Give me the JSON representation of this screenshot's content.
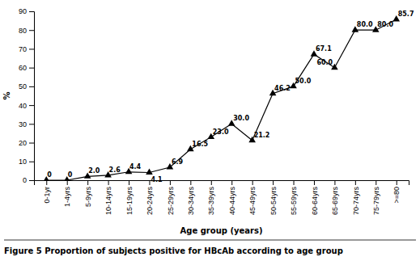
{
  "chart_data": {
    "type": "line",
    "title": "Figure 5 Proportion of subjects positive for HBcAb according to age group",
    "xlabel": "Age group (years)",
    "ylabel": "%",
    "categories": [
      "0-1yr",
      "1-4yrs",
      "5-9yrs",
      "10-14yrs",
      "15-19yrs",
      "20-24yrs",
      "25-29yrs",
      "30-34yrs",
      "35-39yrs",
      "40-44yrs",
      "45-49yrs",
      "50-54yrs",
      "55-59yrs",
      "60-64yrs",
      "65-69yrs",
      "70-74yrs",
      "75-79yrs",
      ">=80"
    ],
    "values": [
      0.0,
      0.0,
      2.0,
      2.6,
      4.4,
      4.1,
      6.9,
      16.5,
      23.0,
      30.0,
      21.2,
      46.2,
      50.0,
      67.1,
      60.0,
      80.0,
      80.0,
      85.7
    ],
    "value_labels": [
      "0",
      "0",
      "2.0",
      "2.6",
      "4.4",
      "4.1",
      "6.9",
      "16.5",
      "23.0",
      "30.0",
      "21.2",
      "46.2",
      "50.0",
      "67.1",
      "60.0",
      "80.0",
      "80.0",
      "85.7"
    ],
    "color": "#000000",
    "marker": "triangle",
    "ylim": [
      0,
      90
    ],
    "yticks": [
      0,
      10,
      20,
      30,
      40,
      50,
      60,
      70,
      80,
      90
    ],
    "grid": false,
    "data_labels": true
  }
}
